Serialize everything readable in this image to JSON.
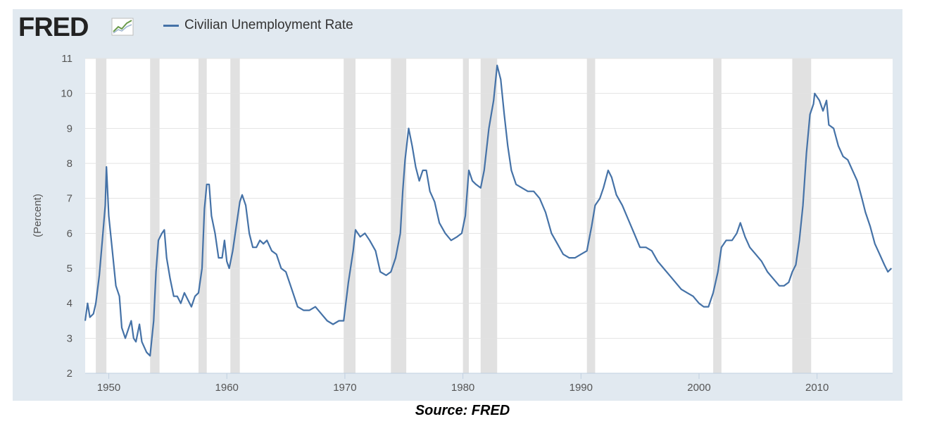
{
  "header": {
    "logo_text": "FRED",
    "legend_label": "Civilian Unemployment Rate"
  },
  "footer": {
    "source": "Source: FRED"
  },
  "colors": {
    "panel_bg": "#e1e9f0",
    "plot_bg": "#ffffff",
    "series": "#4572a7",
    "recession": "#e1e1e1",
    "grid": "#e3e3e3"
  },
  "chart_data": {
    "type": "line",
    "title": "",
    "xlabel": "",
    "ylabel": "(Percent)",
    "xlim": [
      1948.0,
      2016.4
    ],
    "ylim": [
      2,
      11
    ],
    "y_ticks": [
      "2",
      "3",
      "4",
      "5",
      "6",
      "7",
      "8",
      "9",
      "10",
      "11"
    ],
    "x_ticks": [
      {
        "value": 1950,
        "label": "1950"
      },
      {
        "value": 1960,
        "label": "1960"
      },
      {
        "value": 1970,
        "label": "1970"
      },
      {
        "value": 1980,
        "label": "1980"
      },
      {
        "value": 1990,
        "label": "1990"
      },
      {
        "value": 2000,
        "label": "2000"
      },
      {
        "value": 2010,
        "label": "2010"
      }
    ],
    "grid": "horizontal",
    "legend_position": "top",
    "recessions": [
      [
        1948.9,
        1949.8
      ],
      [
        1953.5,
        1954.3
      ],
      [
        1957.6,
        1958.3
      ],
      [
        1960.3,
        1961.1
      ],
      [
        1969.9,
        1970.9
      ],
      [
        1973.9,
        1975.2
      ],
      [
        1980.0,
        1980.5
      ],
      [
        1981.5,
        1982.9
      ],
      [
        1990.5,
        1991.2
      ],
      [
        2001.2,
        2001.9
      ],
      [
        2007.9,
        2009.5
      ]
    ],
    "series": [
      {
        "name": "Civilian Unemployment Rate",
        "points": [
          [
            1948.0,
            3.5
          ],
          [
            1948.2,
            4.0
          ],
          [
            1948.4,
            3.6
          ],
          [
            1948.7,
            3.7
          ],
          [
            1948.9,
            4.0
          ],
          [
            1949.2,
            4.8
          ],
          [
            1949.5,
            6.0
          ],
          [
            1949.7,
            6.8
          ],
          [
            1949.8,
            7.9
          ],
          [
            1950.0,
            6.5
          ],
          [
            1950.3,
            5.5
          ],
          [
            1950.6,
            4.5
          ],
          [
            1950.9,
            4.2
          ],
          [
            1951.1,
            3.3
          ],
          [
            1951.4,
            3.0
          ],
          [
            1951.7,
            3.3
          ],
          [
            1951.9,
            3.5
          ],
          [
            1952.1,
            3.0
          ],
          [
            1952.3,
            2.9
          ],
          [
            1952.6,
            3.4
          ],
          [
            1952.8,
            2.9
          ],
          [
            1953.2,
            2.6
          ],
          [
            1953.5,
            2.5
          ],
          [
            1953.8,
            3.5
          ],
          [
            1954.0,
            4.9
          ],
          [
            1954.2,
            5.8
          ],
          [
            1954.5,
            6.0
          ],
          [
            1954.7,
            6.1
          ],
          [
            1954.9,
            5.3
          ],
          [
            1955.2,
            4.7
          ],
          [
            1955.5,
            4.2
          ],
          [
            1955.8,
            4.2
          ],
          [
            1956.1,
            4.0
          ],
          [
            1956.4,
            4.3
          ],
          [
            1956.7,
            4.1
          ],
          [
            1957.0,
            3.9
          ],
          [
            1957.3,
            4.2
          ],
          [
            1957.6,
            4.3
          ],
          [
            1957.9,
            5.0
          ],
          [
            1958.1,
            6.7
          ],
          [
            1958.3,
            7.4
          ],
          [
            1958.5,
            7.4
          ],
          [
            1958.7,
            6.5
          ],
          [
            1959.0,
            6.0
          ],
          [
            1959.3,
            5.3
          ],
          [
            1959.6,
            5.3
          ],
          [
            1959.8,
            5.8
          ],
          [
            1960.0,
            5.2
          ],
          [
            1960.2,
            5.0
          ],
          [
            1960.5,
            5.5
          ],
          [
            1960.8,
            6.2
          ],
          [
            1961.1,
            6.9
          ],
          [
            1961.3,
            7.1
          ],
          [
            1961.6,
            6.8
          ],
          [
            1961.9,
            6.0
          ],
          [
            1962.2,
            5.6
          ],
          [
            1962.5,
            5.6
          ],
          [
            1962.8,
            5.8
          ],
          [
            1963.1,
            5.7
          ],
          [
            1963.4,
            5.8
          ],
          [
            1963.8,
            5.5
          ],
          [
            1964.2,
            5.4
          ],
          [
            1964.6,
            5.0
          ],
          [
            1965.0,
            4.9
          ],
          [
            1965.5,
            4.4
          ],
          [
            1966.0,
            3.9
          ],
          [
            1966.5,
            3.8
          ],
          [
            1967.0,
            3.8
          ],
          [
            1967.5,
            3.9
          ],
          [
            1968.0,
            3.7
          ],
          [
            1968.5,
            3.5
          ],
          [
            1969.0,
            3.4
          ],
          [
            1969.5,
            3.5
          ],
          [
            1969.9,
            3.5
          ],
          [
            1970.3,
            4.6
          ],
          [
            1970.7,
            5.5
          ],
          [
            1970.9,
            6.1
          ],
          [
            1971.3,
            5.9
          ],
          [
            1971.7,
            6.0
          ],
          [
            1972.1,
            5.8
          ],
          [
            1972.6,
            5.5
          ],
          [
            1973.0,
            4.9
          ],
          [
            1973.5,
            4.8
          ],
          [
            1973.9,
            4.9
          ],
          [
            1974.3,
            5.3
          ],
          [
            1974.7,
            6.0
          ],
          [
            1974.9,
            7.2
          ],
          [
            1975.1,
            8.1
          ],
          [
            1975.4,
            9.0
          ],
          [
            1975.7,
            8.5
          ],
          [
            1976.0,
            7.9
          ],
          [
            1976.3,
            7.5
          ],
          [
            1976.6,
            7.8
          ],
          [
            1976.9,
            7.8
          ],
          [
            1977.2,
            7.2
          ],
          [
            1977.6,
            6.9
          ],
          [
            1978.0,
            6.3
          ],
          [
            1978.5,
            6.0
          ],
          [
            1979.0,
            5.8
          ],
          [
            1979.5,
            5.9
          ],
          [
            1979.9,
            6.0
          ],
          [
            1980.2,
            6.5
          ],
          [
            1980.5,
            7.8
          ],
          [
            1980.8,
            7.5
          ],
          [
            1981.1,
            7.4
          ],
          [
            1981.5,
            7.3
          ],
          [
            1981.8,
            7.8
          ],
          [
            1982.2,
            9.0
          ],
          [
            1982.6,
            9.8
          ],
          [
            1982.9,
            10.8
          ],
          [
            1983.2,
            10.4
          ],
          [
            1983.5,
            9.4
          ],
          [
            1983.8,
            8.5
          ],
          [
            1984.1,
            7.8
          ],
          [
            1984.5,
            7.4
          ],
          [
            1985.0,
            7.3
          ],
          [
            1985.5,
            7.2
          ],
          [
            1986.0,
            7.2
          ],
          [
            1986.5,
            7.0
          ],
          [
            1987.0,
            6.6
          ],
          [
            1987.5,
            6.0
          ],
          [
            1988.0,
            5.7
          ],
          [
            1988.5,
            5.4
          ],
          [
            1989.0,
            5.3
          ],
          [
            1989.5,
            5.3
          ],
          [
            1990.0,
            5.4
          ],
          [
            1990.5,
            5.5
          ],
          [
            1990.9,
            6.2
          ],
          [
            1991.2,
            6.8
          ],
          [
            1991.6,
            7.0
          ],
          [
            1991.9,
            7.3
          ],
          [
            1992.3,
            7.8
          ],
          [
            1992.6,
            7.6
          ],
          [
            1993.0,
            7.1
          ],
          [
            1993.5,
            6.8
          ],
          [
            1994.0,
            6.4
          ],
          [
            1994.5,
            6.0
          ],
          [
            1995.0,
            5.6
          ],
          [
            1995.5,
            5.6
          ],
          [
            1996.0,
            5.5
          ],
          [
            1996.5,
            5.2
          ],
          [
            1997.0,
            5.0
          ],
          [
            1997.5,
            4.8
          ],
          [
            1998.0,
            4.6
          ],
          [
            1998.5,
            4.4
          ],
          [
            1999.0,
            4.3
          ],
          [
            1999.5,
            4.2
          ],
          [
            2000.0,
            4.0
          ],
          [
            2000.4,
            3.9
          ],
          [
            2000.8,
            3.9
          ],
          [
            2001.2,
            4.3
          ],
          [
            2001.6,
            4.9
          ],
          [
            2001.9,
            5.6
          ],
          [
            2002.3,
            5.8
          ],
          [
            2002.8,
            5.8
          ],
          [
            2003.2,
            6.0
          ],
          [
            2003.5,
            6.3
          ],
          [
            2003.9,
            5.9
          ],
          [
            2004.3,
            5.6
          ],
          [
            2004.8,
            5.4
          ],
          [
            2005.3,
            5.2
          ],
          [
            2005.8,
            4.9
          ],
          [
            2006.3,
            4.7
          ],
          [
            2006.8,
            4.5
          ],
          [
            2007.2,
            4.5
          ],
          [
            2007.6,
            4.6
          ],
          [
            2007.9,
            4.9
          ],
          [
            2008.2,
            5.1
          ],
          [
            2008.5,
            5.8
          ],
          [
            2008.8,
            6.8
          ],
          [
            2009.1,
            8.3
          ],
          [
            2009.4,
            9.4
          ],
          [
            2009.7,
            9.7
          ],
          [
            2009.8,
            10.0
          ],
          [
            2010.2,
            9.8
          ],
          [
            2010.5,
            9.5
          ],
          [
            2010.8,
            9.8
          ],
          [
            2011.0,
            9.1
          ],
          [
            2011.4,
            9.0
          ],
          [
            2011.8,
            8.5
          ],
          [
            2012.2,
            8.2
          ],
          [
            2012.6,
            8.1
          ],
          [
            2013.0,
            7.8
          ],
          [
            2013.4,
            7.5
          ],
          [
            2013.8,
            7.0
          ],
          [
            2014.1,
            6.6
          ],
          [
            2014.5,
            6.2
          ],
          [
            2014.9,
            5.7
          ],
          [
            2015.3,
            5.4
          ],
          [
            2015.7,
            5.1
          ],
          [
            2016.0,
            4.9
          ],
          [
            2016.3,
            5.0
          ]
        ]
      }
    ]
  }
}
